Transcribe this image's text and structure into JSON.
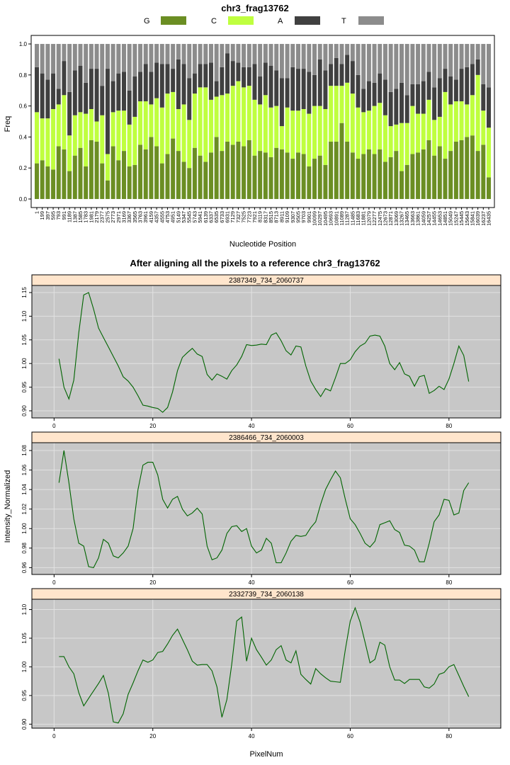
{
  "chart_data": [
    {
      "type": "bar",
      "stacked": true,
      "title": "chr3_frag13762",
      "xlabel": "Nucleotide Position",
      "ylabel": "Freq",
      "ylim": [
        0,
        1
      ],
      "yticks": [
        0.0,
        0.2,
        0.4,
        0.6,
        0.8,
        1.0
      ],
      "ytick_labels": [
        "0.0",
        "0.2",
        "0.4",
        "0.6",
        "0.8",
        "1.0"
      ],
      "legend_position": "top",
      "categories": [
        "1",
        "199",
        "397",
        "595",
        "793",
        "991",
        "1189",
        "1387",
        "1585",
        "1783",
        "1981",
        "2179",
        "2377",
        "2575",
        "2773",
        "2971",
        "3169",
        "3367",
        "3565",
        "3763",
        "3961",
        "4159",
        "4357",
        "4555",
        "4753",
        "4951",
        "5149",
        "5347",
        "5545",
        "5743",
        "5941",
        "6139",
        "6337",
        "6535",
        "6733",
        "6931",
        "7129",
        "7327",
        "7525",
        "7723",
        "7921",
        "8119",
        "8317",
        "8515",
        "8713",
        "8911",
        "9109",
        "9307",
        "9505",
        "9703",
        "9901",
        "10099",
        "10297",
        "10495",
        "10693",
        "10891",
        "11089",
        "11287",
        "11485",
        "11683",
        "11881",
        "12079",
        "12277",
        "12475",
        "12673",
        "12871",
        "13069",
        "13267",
        "13465",
        "13663",
        "13861",
        "14059",
        "14257",
        "14455",
        "14653",
        "14851",
        "15049",
        "15247",
        "15445",
        "15643",
        "15841",
        "16039",
        "16237",
        "16435"
      ],
      "series": [
        {
          "name": "G",
          "color": "#6b8e23",
          "values": [
            0.23,
            0.25,
            0.21,
            0.19,
            0.34,
            0.32,
            0.18,
            0.28,
            0.33,
            0.21,
            0.38,
            0.37,
            0.23,
            0.12,
            0.34,
            0.25,
            0.31,
            0.21,
            0.22,
            0.35,
            0.32,
            0.4,
            0.34,
            0.23,
            0.29,
            0.39,
            0.31,
            0.24,
            0.2,
            0.33,
            0.28,
            0.24,
            0.3,
            0.4,
            0.31,
            0.37,
            0.35,
            0.37,
            0.34,
            0.38,
            0.28,
            0.31,
            0.3,
            0.27,
            0.33,
            0.32,
            0.3,
            0.26,
            0.3,
            0.29,
            0.21,
            0.26,
            0.28,
            0.22,
            0.37,
            0.37,
            0.49,
            0.37,
            0.3,
            0.26,
            0.29,
            0.32,
            0.29,
            0.32,
            0.24,
            0.27,
            0.31,
            0.18,
            0.22,
            0.29,
            0.3,
            0.32,
            0.38,
            0.28,
            0.34,
            0.26,
            0.31,
            0.37,
            0.38,
            0.4,
            0.41,
            0.31,
            0.35,
            0.14
          ]
        },
        {
          "name": "C",
          "color": "#bfff3f",
          "values": [
            0.33,
            0.27,
            0.31,
            0.39,
            0.27,
            0.35,
            0.23,
            0.26,
            0.23,
            0.34,
            0.2,
            0.13,
            0.31,
            0.17,
            0.22,
            0.32,
            0.26,
            0.27,
            0.31,
            0.28,
            0.31,
            0.21,
            0.31,
            0.36,
            0.39,
            0.3,
            0.27,
            0.37,
            0.31,
            0.35,
            0.44,
            0.48,
            0.34,
            0.26,
            0.36,
            0.31,
            0.38,
            0.39,
            0.38,
            0.35,
            0.36,
            0.3,
            0.37,
            0.32,
            0.27,
            0.15,
            0.29,
            0.31,
            0.27,
            0.29,
            0.34,
            0.34,
            0.32,
            0.36,
            0.36,
            0.36,
            0.24,
            0.38,
            0.38,
            0.33,
            0.27,
            0.25,
            0.31,
            0.3,
            0.3,
            0.2,
            0.17,
            0.31,
            0.27,
            0.31,
            0.25,
            0.23,
            0.26,
            0.23,
            0.19,
            0.43,
            0.3,
            0.26,
            0.25,
            0.21,
            0.26,
            0.49,
            0.22,
            0.32
          ]
        },
        {
          "name": "A",
          "color": "#404040",
          "values": [
            0.29,
            0.29,
            0.25,
            0.23,
            0.1,
            0.22,
            0.28,
            0.29,
            0.3,
            0.2,
            0.26,
            0.34,
            0.19,
            0.55,
            0.2,
            0.24,
            0.25,
            0.22,
            0.26,
            0.19,
            0.24,
            0.21,
            0.23,
            0.28,
            0.19,
            0.15,
            0.32,
            0.26,
            0.27,
            0.13,
            0.15,
            0.15,
            0.24,
            0.1,
            0.18,
            0.26,
            0.16,
            0.12,
            0.13,
            0.12,
            0.23,
            0.18,
            0.21,
            0.27,
            0.23,
            0.31,
            0.19,
            0.28,
            0.27,
            0.26,
            0.27,
            0.2,
            0.3,
            0.25,
            0.14,
            0.18,
            0.14,
            0.18,
            0.21,
            0.21,
            0.15,
            0.19,
            0.15,
            0.19,
            0.23,
            0.22,
            0.23,
            0.26,
            0.18,
            0.14,
            0.19,
            0.21,
            0.18,
            0.21,
            0.25,
            0.15,
            0.18,
            0.14,
            0.21,
            0.24,
            0.2,
            0.1,
            0.17,
            0.26
          ]
        },
        {
          "name": "T",
          "color": "#8c8c8c",
          "values": [
            0.15,
            0.19,
            0.23,
            0.19,
            0.29,
            0.11,
            0.31,
            0.17,
            0.14,
            0.25,
            0.16,
            0.16,
            0.27,
            0.16,
            0.24,
            0.19,
            0.18,
            0.3,
            0.21,
            0.18,
            0.13,
            0.18,
            0.12,
            0.13,
            0.13,
            0.16,
            0.1,
            0.13,
            0.22,
            0.19,
            0.13,
            0.13,
            0.12,
            0.24,
            0.15,
            0.06,
            0.11,
            0.12,
            0.15,
            0.15,
            0.13,
            0.21,
            0.12,
            0.14,
            0.17,
            0.22,
            0.22,
            0.15,
            0.16,
            0.16,
            0.18,
            0.2,
            0.1,
            0.17,
            0.13,
            0.09,
            0.13,
            0.07,
            0.11,
            0.2,
            0.29,
            0.24,
            0.25,
            0.19,
            0.23,
            0.31,
            0.29,
            0.25,
            0.33,
            0.26,
            0.26,
            0.24,
            0.18,
            0.28,
            0.22,
            0.16,
            0.21,
            0.23,
            0.16,
            0.15,
            0.13,
            0.1,
            0.26,
            0.28
          ]
        }
      ]
    },
    {
      "type": "line",
      "title": "After aligning all the pixels to a reference chr3_frag13762",
      "xlabel": "PixelNum",
      "ylabel": "Intensity_Normalized",
      "xlim": [
        0,
        90
      ],
      "xticks": [
        0,
        20,
        40,
        60,
        80
      ],
      "line_color": "#006400",
      "panels": [
        {
          "strip": "2387349_734_2060737",
          "ylim": [
            0.885,
            1.165
          ],
          "yticks": [
            0.9,
            0.95,
            1.0,
            1.05,
            1.1,
            1.15
          ],
          "ytick_labels": [
            "0.90",
            "0.95",
            "1.00",
            "1.05",
            "1.10",
            "1.15"
          ],
          "x": [
            1,
            2,
            3,
            4,
            5,
            6,
            7,
            8,
            9,
            10,
            11,
            12,
            13,
            14,
            15,
            16,
            17,
            18,
            19,
            20,
            21,
            22,
            23,
            24,
            25,
            26,
            27,
            28,
            29,
            30,
            31,
            32,
            33,
            34,
            35,
            36,
            37,
            38,
            39,
            40,
            41,
            42,
            43,
            44,
            45,
            46,
            47,
            48,
            49,
            50,
            51,
            52,
            53,
            54,
            55,
            56,
            57,
            58,
            59,
            60,
            61,
            62,
            63,
            64,
            65,
            66,
            67,
            68,
            69,
            70,
            71,
            72,
            73,
            74,
            75,
            76,
            77,
            78,
            79,
            80,
            81,
            82,
            83,
            84
          ],
          "y": [
            1.01,
            0.95,
            0.925,
            0.965,
            1.065,
            1.145,
            1.15,
            1.115,
            1.075,
            1.055,
            1.035,
            1.015,
            0.995,
            0.972,
            0.963,
            0.95,
            0.932,
            0.912,
            0.91,
            0.907,
            0.905,
            0.897,
            0.907,
            0.94,
            0.985,
            1.013,
            1.023,
            1.032,
            1.02,
            1.015,
            0.977,
            0.965,
            0.978,
            0.973,
            0.967,
            0.985,
            0.997,
            1.015,
            1.04,
            1.038,
            1.039,
            1.041,
            1.04,
            1.06,
            1.065,
            1.048,
            1.027,
            1.018,
            1.037,
            1.035,
            0.995,
            0.963,
            0.945,
            0.93,
            0.947,
            0.942,
            0.97,
            1.0,
            1.0,
            1.008,
            1.025,
            1.037,
            1.043,
            1.058,
            1.06,
            1.058,
            1.037,
            1.0,
            0.987,
            1.002,
            0.978,
            0.973,
            0.952,
            0.972,
            0.975,
            0.937,
            0.943,
            0.952,
            0.945,
            0.967,
            1.0,
            1.037,
            1.017,
            0.962
          ]
        },
        {
          "strip": "2386466_734_2060003",
          "ylim": [
            0.953,
            1.088
          ],
          "yticks": [
            0.96,
            0.98,
            1.0,
            1.02,
            1.04,
            1.06,
            1.08
          ],
          "ytick_labels": [
            "0.96",
            "0.98",
            "1.00",
            "1.02",
            "1.04",
            "1.06",
            "1.08"
          ],
          "x": [
            1,
            2,
            3,
            4,
            5,
            6,
            7,
            8,
            9,
            10,
            11,
            12,
            13,
            14,
            15,
            16,
            17,
            18,
            19,
            20,
            21,
            22,
            23,
            24,
            25,
            26,
            27,
            28,
            29,
            30,
            31,
            32,
            33,
            34,
            35,
            36,
            37,
            38,
            39,
            40,
            41,
            42,
            43,
            44,
            45,
            46,
            47,
            48,
            49,
            50,
            51,
            52,
            53,
            54,
            55,
            56,
            57,
            58,
            59,
            60,
            61,
            62,
            63,
            64,
            65,
            66,
            67,
            68,
            69,
            70,
            71,
            72,
            73,
            74,
            75,
            76,
            77,
            78,
            79,
            80,
            81,
            82,
            83,
            84
          ],
          "y": [
            1.047,
            1.08,
            1.047,
            1.01,
            0.985,
            0.982,
            0.961,
            0.96,
            0.97,
            0.989,
            0.985,
            0.972,
            0.97,
            0.975,
            0.982,
            1.0,
            1.04,
            1.065,
            1.068,
            1.068,
            1.055,
            1.03,
            1.021,
            1.03,
            1.033,
            1.02,
            1.013,
            1.016,
            1.021,
            1.015,
            0.982,
            0.968,
            0.97,
            0.978,
            0.995,
            1.002,
            1.003,
            0.997,
            1.0,
            0.982,
            0.975,
            0.978,
            0.99,
            0.985,
            0.965,
            0.965,
            0.975,
            0.987,
            0.993,
            0.992,
            0.993,
            1.001,
            1.007,
            1.025,
            1.04,
            1.05,
            1.059,
            1.052,
            1.03,
            1.01,
            1.004,
            0.995,
            0.985,
            0.981,
            0.987,
            1.004,
            1.006,
            1.008,
            0.999,
            0.996,
            0.983,
            0.982,
            0.978,
            0.966,
            0.966,
            0.985,
            1.007,
            1.014,
            1.03,
            1.029,
            1.014,
            1.016,
            1.039,
            1.047
          ]
        },
        {
          "strip": "2332739_734_2060138",
          "ylim": [
            0.893,
            1.118
          ],
          "yticks": [
            0.9,
            0.95,
            1.0,
            1.05,
            1.1
          ],
          "ytick_labels": [
            "0.90",
            "0.95",
            "1.00",
            "1.05",
            "1.10"
          ],
          "x": [
            1,
            2,
            3,
            4,
            5,
            6,
            7,
            8,
            9,
            10,
            11,
            12,
            13,
            14,
            15,
            16,
            17,
            18,
            19,
            20,
            21,
            22,
            23,
            24,
            25,
            26,
            27,
            28,
            29,
            30,
            31,
            32,
            33,
            34,
            35,
            36,
            37,
            38,
            39,
            40,
            41,
            42,
            43,
            44,
            45,
            46,
            47,
            48,
            49,
            50,
            51,
            52,
            53,
            54,
            55,
            56,
            57,
            58,
            59,
            60,
            61,
            62,
            63,
            64,
            65,
            66,
            67,
            68,
            69,
            70,
            71,
            72,
            73,
            74,
            75,
            76,
            77,
            78,
            79,
            80,
            81,
            82,
            83,
            84
          ],
          "y": [
            1.018,
            1.018,
            1.0,
            0.988,
            0.955,
            0.932,
            0.945,
            0.958,
            0.971,
            0.985,
            0.954,
            0.904,
            0.902,
            0.918,
            0.952,
            0.972,
            0.993,
            1.012,
            1.008,
            1.012,
            1.025,
            1.027,
            1.04,
            1.055,
            1.066,
            1.048,
            1.03,
            1.01,
            1.003,
            1.004,
            1.004,
            0.993,
            0.965,
            0.912,
            0.943,
            1.005,
            1.08,
            1.087,
            1.01,
            1.05,
            1.03,
            1.017,
            1.003,
            1.012,
            1.03,
            1.037,
            1.012,
            1.007,
            1.028,
            0.987,
            0.978,
            0.97,
            0.997,
            0.988,
            0.981,
            0.975,
            0.974,
            0.973,
            1.03,
            1.08,
            1.103,
            1.078,
            1.043,
            1.007,
            1.013,
            1.043,
            1.038,
            1.0,
            0.977,
            0.977,
            0.971,
            0.978,
            0.978,
            0.978,
            0.965,
            0.963,
            0.97,
            0.987,
            0.99,
            1.0,
            1.004,
            0.985,
            0.966,
            0.948
          ]
        }
      ]
    }
  ]
}
